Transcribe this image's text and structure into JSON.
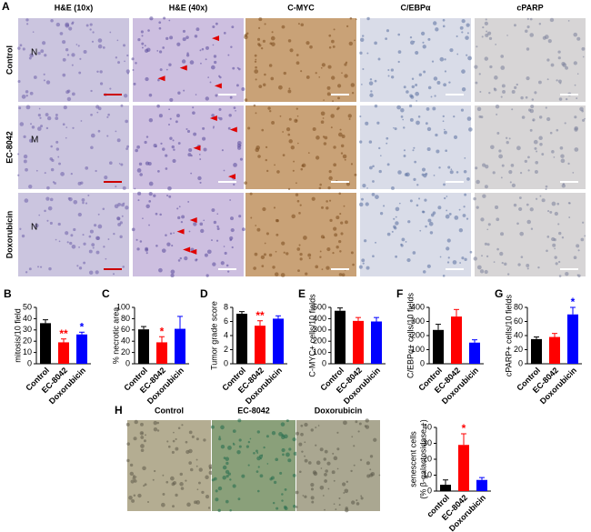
{
  "panel_a": {
    "label": "A",
    "columns": [
      "H&E (10x)",
      "H&E (40x)",
      "C-MYC",
      "C/EBPα",
      "cPARP"
    ],
    "rows": [
      "Control",
      "EC-8042",
      "Doxorubicin"
    ],
    "row_markers": [
      "N",
      "M",
      "N"
    ]
  },
  "panel_h": {
    "images": [
      "Control",
      "EC-8042",
      "Doxorubicin"
    ]
  },
  "chart_data": [
    {
      "type": "bar",
      "panel": "B",
      "y_label": "mitosis/10 field",
      "categories": [
        "Control",
        "EC-8042",
        "Doxorubicin"
      ],
      "values": [
        36,
        19,
        26
      ],
      "errors": [
        3,
        3,
        2
      ],
      "colors": [
        "#000000",
        "#ff0000",
        "#0000ff"
      ],
      "ylim": [
        0,
        50
      ],
      "yticks": [
        0,
        10,
        20,
        30,
        40,
        50
      ],
      "annotations": [
        {
          "category": "EC-8042",
          "text": "**",
          "color": "#ff0000"
        },
        {
          "category": "Doxorubicin",
          "text": "*",
          "color": "#0000ff"
        }
      ]
    },
    {
      "type": "bar",
      "panel": "C",
      "y_label": "% necrotic area",
      "categories": [
        "Control",
        "EC-8042",
        "Doxorubicin"
      ],
      "values": [
        61,
        38,
        62
      ],
      "errors": [
        5,
        10,
        22
      ],
      "colors": [
        "#000000",
        "#ff0000",
        "#0000ff"
      ],
      "ylim": [
        0,
        100
      ],
      "yticks": [
        0,
        20,
        40,
        60,
        80,
        100
      ],
      "annotations": [
        {
          "category": "EC-8042",
          "text": "*",
          "color": "#ff0000"
        }
      ]
    },
    {
      "type": "bar",
      "panel": "D",
      "y_label": "Tumor grade score",
      "categories": [
        "Control",
        "EC-8042",
        "Doxorubicin"
      ],
      "values": [
        7.1,
        5.4,
        6.4
      ],
      "errors": [
        0.3,
        0.7,
        0.4
      ],
      "colors": [
        "#000000",
        "#ff0000",
        "#0000ff"
      ],
      "ylim": [
        0,
        8
      ],
      "yticks": [
        0,
        2,
        4,
        6,
        8
      ],
      "annotations": [
        {
          "category": "EC-8042",
          "text": "**",
          "color": "#ff0000"
        }
      ]
    },
    {
      "type": "bar",
      "panel": "E",
      "y_label": "C-MYC+ cells/10 fields",
      "categories": [
        "Control",
        "EC-8042",
        "Doxorubicin"
      ],
      "values": [
        470,
        380,
        375
      ],
      "errors": [
        25,
        30,
        35
      ],
      "colors": [
        "#000000",
        "#ff0000",
        "#0000ff"
      ],
      "ylim": [
        0,
        500
      ],
      "yticks": [
        0,
        100,
        200,
        300,
        400,
        500
      ]
    },
    {
      "type": "bar",
      "panel": "F",
      "y_label": "C/EBPα+ cells/10 fields",
      "categories": [
        "Control",
        "EC-8042",
        "Doxorubicin"
      ],
      "values": [
        240,
        335,
        150
      ],
      "errors": [
        40,
        50,
        20
      ],
      "colors": [
        "#000000",
        "#ff0000",
        "#0000ff"
      ],
      "ylim": [
        0,
        400
      ],
      "yticks": [
        0,
        100,
        200,
        300,
        400
      ]
    },
    {
      "type": "bar",
      "panel": "G",
      "y_label": "cPARP+ cells/10 fields",
      "categories": [
        "Control",
        "EC-8042",
        "Doxorubicin"
      ],
      "values": [
        35,
        38,
        70
      ],
      "errors": [
        3,
        5,
        10
      ],
      "colors": [
        "#000000",
        "#ff0000",
        "#0000ff"
      ],
      "ylim": [
        0,
        80
      ],
      "yticks": [
        0,
        20,
        40,
        60,
        80
      ],
      "annotations": [
        {
          "category": "Doxorubicin",
          "text": "*",
          "color": "#0000ff"
        }
      ]
    },
    {
      "type": "bar",
      "panel": "H",
      "y_label": [
        "senescent cells",
        "(% β-galactosidase +)"
      ],
      "categories": [
        "control",
        "EC-8042",
        "Doxorubicin"
      ],
      "values": [
        4,
        29,
        7
      ],
      "errors": [
        3,
        7,
        1.5
      ],
      "colors": [
        "#000000",
        "#ff0000",
        "#0000ff"
      ],
      "ylim": [
        0,
        40
      ],
      "yticks": [
        0,
        10,
        20,
        30,
        40
      ],
      "annotations": [
        {
          "category": "EC-8042",
          "text": "*",
          "color": "#ff0000"
        }
      ]
    }
  ]
}
